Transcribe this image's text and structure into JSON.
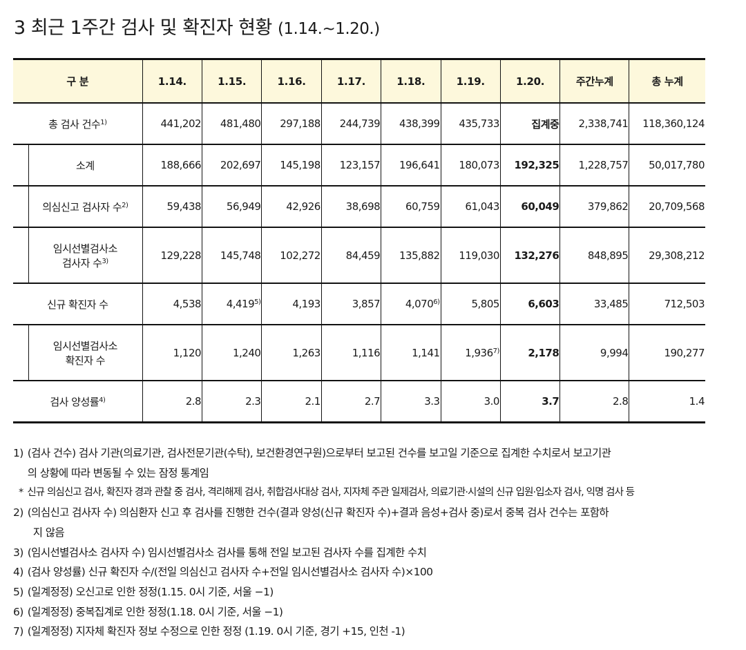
{
  "title": {
    "number": "3",
    "main": "최근 1주간 검사 및 확진자 현황",
    "period": "(1.14.~1.20.)"
  },
  "table": {
    "headers": [
      "구 분",
      "1.14.",
      "1.15.",
      "1.16.",
      "1.17.",
      "1.18.",
      "1.19.",
      "1.20.",
      "주간누계",
      "총 누계"
    ],
    "rows": [
      {
        "label": "총 검사 건수",
        "label_sup": "1)",
        "values": [
          "441,202",
          "481,480",
          "297,188",
          "244,739",
          "438,399",
          "435,733",
          "집계중",
          "2,338,741",
          "118,360,124"
        ]
      },
      {
        "label": "소계",
        "values": [
          "188,666",
          "202,697",
          "145,198",
          "123,157",
          "196,641",
          "180,073",
          "192,325",
          "1,228,757",
          "50,017,780"
        ]
      },
      {
        "label": "의심신고 검사자 수",
        "label_sup": "2)",
        "values": [
          "59,438",
          "56,949",
          "42,926",
          "38,698",
          "60,759",
          "61,043",
          "60,049",
          "379,862",
          "20,709,568"
        ]
      },
      {
        "label_line1": "임시선별검사소",
        "label_line2": "검사자 수",
        "label_sup": "3)",
        "values": [
          "129,228",
          "145,748",
          "102,272",
          "84,459",
          "135,882",
          "119,030",
          "132,276",
          "848,895",
          "29,308,212"
        ]
      },
      {
        "label": "신규 확진자 수",
        "values": [
          "4,538",
          "4,419",
          "4,193",
          "3,857",
          "4,070",
          "5,805",
          "6,603",
          "33,485",
          "712,503"
        ],
        "value_sups": {
          "d2": "5)",
          "d5": "6)"
        }
      },
      {
        "label_line1": "임시선별검사소",
        "label_line2": "확진자 수",
        "values": [
          "1,120",
          "1,240",
          "1,263",
          "1,116",
          "1,141",
          "1,936",
          "2,178",
          "9,994",
          "190,277"
        ],
        "value_sups": {
          "d6": "7)"
        }
      },
      {
        "label": "검사 양성률",
        "label_sup": "4)",
        "values": [
          "2.8",
          "2.3",
          "2.1",
          "2.7",
          "3.3",
          "3.0",
          "3.7",
          "2.8",
          "1.4"
        ]
      }
    ]
  },
  "notes": [
    {
      "mark": "1)",
      "line1": "(검사 건수) 검사 기관(의료기관, 검사전문기관(수탁), 보건환경연구원)으로부터 보고된 건수를 보고일 기준으로 집계한 수치로서 보고기관",
      "line2": "의 상황에 따라 변동될 수 있는 잠정 통계임"
    },
    {
      "mark": "*",
      "line1": "신규 의심신고 검사, 확진자 경과 관찰 중 검사, 격리해제 검사, 취합검사대상 검사, 지자체 주관 일제검사, 의료기관·시설의 신규 입원·입소자 검사, 익명 검사 등"
    },
    {
      "mark": "2)",
      "line1": "(의심신고 검사자 수) 의심환자 신고 후 검사를 진행한 건수(결과 양성(신규 확진자 수)+결과 음성+검사 중)로서 중복 검사 건수는 포함하",
      "line2": "지 않음"
    },
    {
      "mark": "3)",
      "line1": "(임시선별검사소 검사자 수) 임시선별검사소 검사를 통해 전일 보고된 검사자 수를 집계한 수치"
    },
    {
      "mark": "4)",
      "line1": "(검사 양성률) 신규 확진자 수/(전일 의심신고 검사자 수+전일 임시선별검사소 검사자 수)×100"
    },
    {
      "mark": "5)",
      "line1": "(일계정정) 오신고로 인한 정정(1.15. 0시 기준, 서울 −1)"
    },
    {
      "mark": "6)",
      "line1": "(일계정정) 중복집계로 인한 정정(1.18. 0시 기준, 서울 −1)"
    },
    {
      "mark": "7)",
      "line1": "(일계정정) 지자체 확진자 정보 수정으로 인한 정정 (1.19. 0시 기준, 경기 +15, 인천 -1)"
    }
  ]
}
